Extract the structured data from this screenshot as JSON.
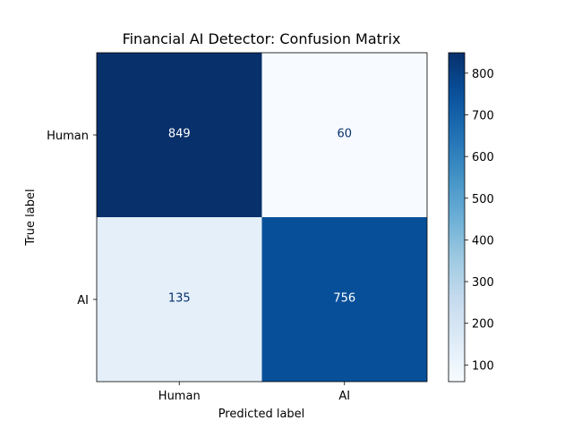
{
  "chart_data": {
    "type": "heatmap",
    "title": "Financial AI Detector: Confusion Matrix",
    "xlabel": "Predicted label",
    "ylabel": "True label",
    "x_categories": [
      "Human",
      "AI"
    ],
    "y_categories": [
      "Human",
      "AI"
    ],
    "values": [
      [
        849,
        60
      ],
      [
        135,
        756
      ]
    ],
    "colormap": "Blues",
    "colorbar": {
      "range": [
        60,
        849
      ],
      "ticks": [
        100,
        200,
        300,
        400,
        500,
        600,
        700,
        800
      ]
    },
    "grid": false
  }
}
